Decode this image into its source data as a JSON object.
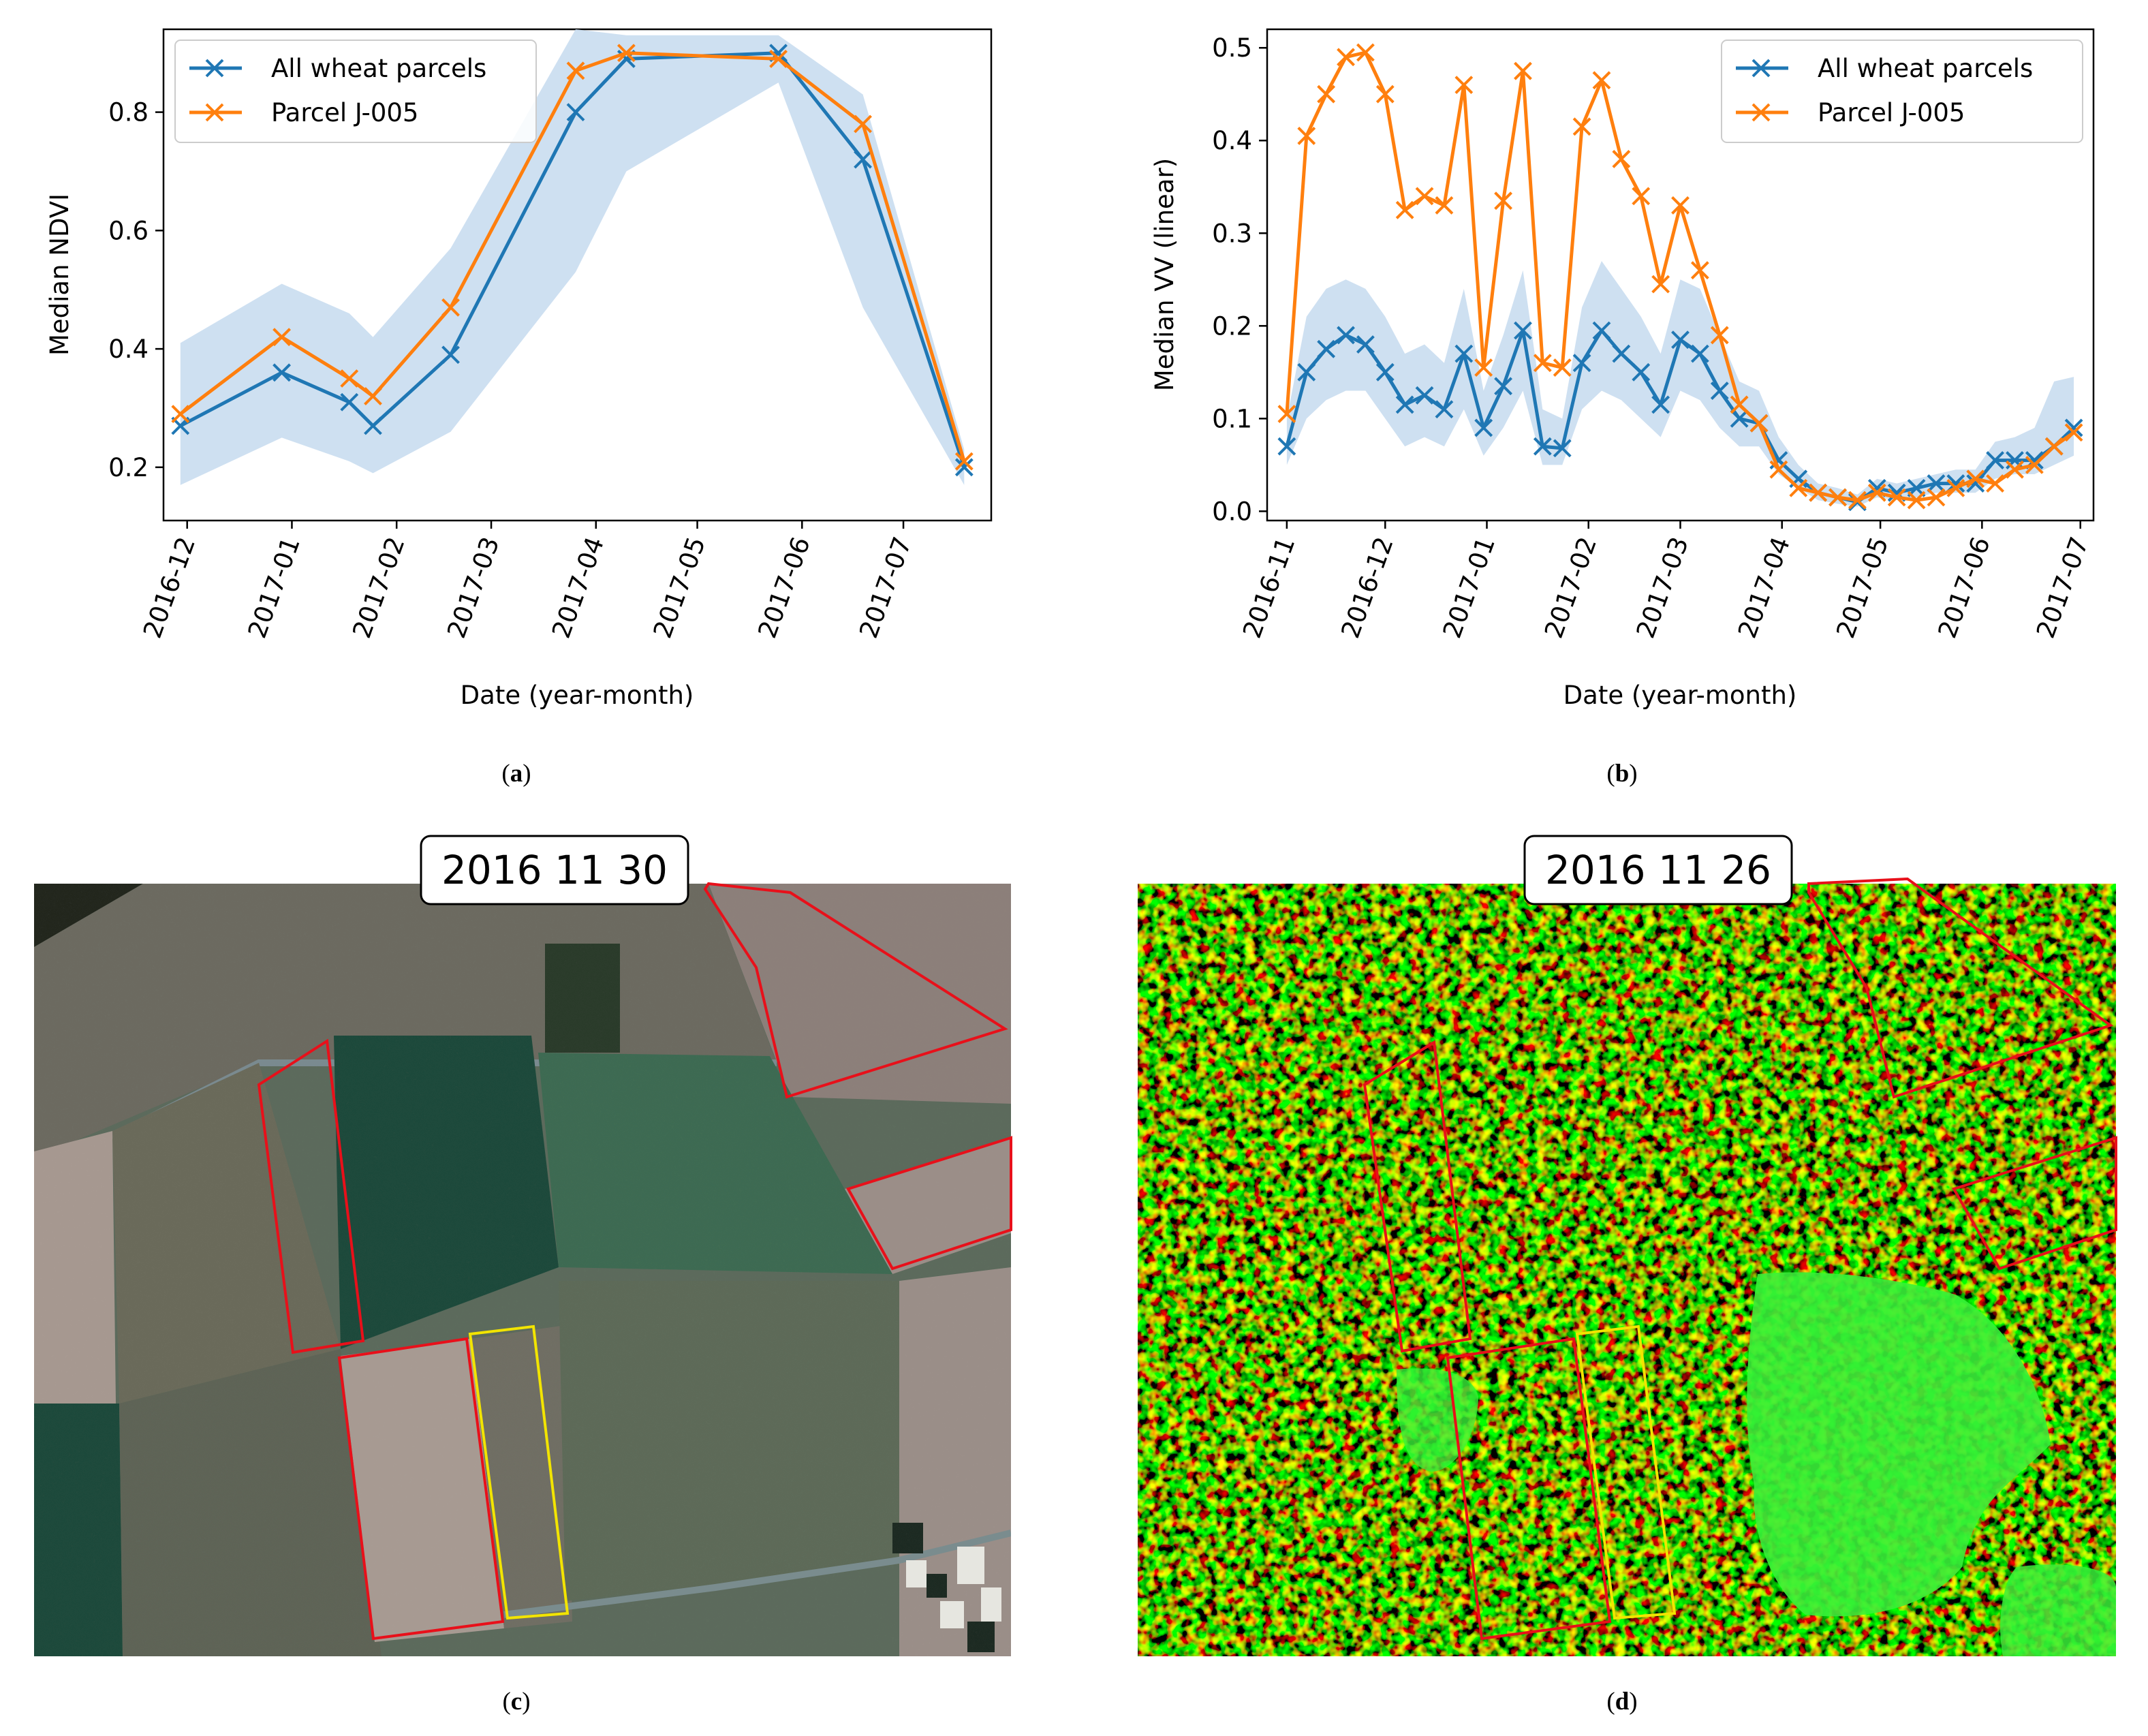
{
  "colors": {
    "all_wheat": "#1f77b4",
    "parcel": "#ff7f0e",
    "band": "#c6dbee",
    "parcel_outline_red": "#e8101a",
    "parcel_outline_yellow": "#f2e400"
  },
  "panels": {
    "a": {
      "caption_letter": "a"
    },
    "b": {
      "caption_letter": "b"
    },
    "c": {
      "caption_letter": "c",
      "date_label": "2016 11 30"
    },
    "d": {
      "caption_letter": "d",
      "date_label": "2016 11 26"
    }
  },
  "chart_data": [
    {
      "id": "a",
      "type": "line",
      "xlabel": "Date (year-month)",
      "ylabel": "Median NDVI",
      "x_ticks": [
        "2016-12",
        "2017-01",
        "2017-02",
        "2017-03",
        "2017-04",
        "2017-05",
        "2017-06",
        "2017-07"
      ],
      "x_tick_dates": [
        "2016-12-01",
        "2017-01-01",
        "2017-02-01",
        "2017-03-01",
        "2017-04-01",
        "2017-05-01",
        "2017-06-01",
        "2017-07-01"
      ],
      "xlim": [
        "2016-11-24",
        "2017-07-27"
      ],
      "ylim": [
        0.11,
        0.94
      ],
      "y_ticks": [
        0.2,
        0.4,
        0.6,
        0.8
      ],
      "grid": false,
      "legend_position": "upper-left",
      "legend": [
        "All wheat parcels",
        "Parcel J-005"
      ],
      "series": [
        {
          "name": "All wheat parcels",
          "x": [
            "2016-11-29",
            "2016-12-29",
            "2017-01-18",
            "2017-01-25",
            "2017-02-17",
            "2017-03-26",
            "2017-04-10",
            "2017-05-25",
            "2017-06-19",
            "2017-07-19"
          ],
          "y": [
            0.27,
            0.36,
            0.31,
            0.27,
            0.39,
            0.8,
            0.89,
            0.9,
            0.72,
            0.2
          ],
          "band_low": [
            0.17,
            0.25,
            0.21,
            0.19,
            0.26,
            0.53,
            0.7,
            0.85,
            0.47,
            0.17
          ],
          "band_high": [
            0.41,
            0.51,
            0.46,
            0.42,
            0.57,
            0.94,
            0.93,
            0.93,
            0.83,
            0.23
          ]
        },
        {
          "name": "Parcel J-005",
          "x": [
            "2016-11-29",
            "2016-12-29",
            "2017-01-18",
            "2017-01-25",
            "2017-02-17",
            "2017-03-26",
            "2017-04-10",
            "2017-05-25",
            "2017-06-19",
            "2017-07-19"
          ],
          "y": [
            0.29,
            0.42,
            0.35,
            0.32,
            0.47,
            0.87,
            0.9,
            0.89,
            0.78,
            0.21
          ]
        }
      ]
    },
    {
      "id": "b",
      "type": "line",
      "xlabel": "Date (year-month)",
      "ylabel": "Median VV (linear)",
      "x_ticks": [
        "2016-11",
        "2016-12",
        "2017-01",
        "2017-02",
        "2017-03",
        "2017-04",
        "2017-05",
        "2017-06",
        "2017-07"
      ],
      "x_tick_dates": [
        "2016-11-01",
        "2016-12-01",
        "2017-01-01",
        "2017-02-01",
        "2017-03-01",
        "2017-04-01",
        "2017-05-01",
        "2017-06-01",
        "2017-07-01"
      ],
      "xlim": [
        "2016-10-26",
        "2017-07-05"
      ],
      "ylim": [
        -0.01,
        0.52
      ],
      "y_ticks": [
        0.0,
        0.1,
        0.2,
        0.3,
        0.4,
        0.5
      ],
      "grid": false,
      "legend_position": "upper-right",
      "legend": [
        "All wheat parcels",
        "Parcel J-005"
      ],
      "series": [
        {
          "name": "All wheat parcels",
          "x": [
            "2016-11-01",
            "2016-11-07",
            "2016-11-13",
            "2016-11-19",
            "2016-11-25",
            "2016-12-01",
            "2016-12-07",
            "2016-12-13",
            "2016-12-19",
            "2016-12-25",
            "2016-12-31",
            "2017-01-06",
            "2017-01-12",
            "2017-01-18",
            "2017-01-24",
            "2017-01-30",
            "2017-02-05",
            "2017-02-11",
            "2017-02-17",
            "2017-02-23",
            "2017-03-01",
            "2017-03-07",
            "2017-03-13",
            "2017-03-19",
            "2017-03-25",
            "2017-03-31",
            "2017-04-06",
            "2017-04-12",
            "2017-04-18",
            "2017-04-24",
            "2017-04-30",
            "2017-05-06",
            "2017-05-12",
            "2017-05-18",
            "2017-05-24",
            "2017-05-30",
            "2017-06-05",
            "2017-06-11",
            "2017-06-17",
            "2017-06-23",
            "2017-06-29"
          ],
          "y": [
            0.07,
            0.15,
            0.175,
            0.19,
            0.18,
            0.15,
            0.115,
            0.125,
            0.11,
            0.17,
            0.09,
            0.135,
            0.195,
            0.07,
            0.068,
            0.16,
            0.195,
            0.17,
            0.15,
            0.115,
            0.185,
            0.17,
            0.13,
            0.1,
            0.095,
            0.055,
            0.035,
            0.02,
            0.015,
            0.01,
            0.025,
            0.02,
            0.025,
            0.03,
            0.03,
            0.03,
            0.055,
            0.055,
            0.055,
            0.07,
            0.09
          ],
          "band_low": [
            0.05,
            0.1,
            0.12,
            0.13,
            0.13,
            0.1,
            0.07,
            0.08,
            0.07,
            0.11,
            0.06,
            0.09,
            0.13,
            0.05,
            0.05,
            0.11,
            0.13,
            0.12,
            0.1,
            0.08,
            0.13,
            0.12,
            0.09,
            0.07,
            0.07,
            0.04,
            0.025,
            0.012,
            0.008,
            0.005,
            0.015,
            0.012,
            0.015,
            0.02,
            0.02,
            0.02,
            0.035,
            0.04,
            0.04,
            0.05,
            0.06
          ],
          "band_high": [
            0.1,
            0.21,
            0.24,
            0.25,
            0.24,
            0.21,
            0.17,
            0.18,
            0.16,
            0.24,
            0.13,
            0.19,
            0.26,
            0.11,
            0.1,
            0.22,
            0.27,
            0.24,
            0.21,
            0.17,
            0.25,
            0.24,
            0.19,
            0.14,
            0.13,
            0.08,
            0.05,
            0.03,
            0.025,
            0.018,
            0.035,
            0.03,
            0.035,
            0.04,
            0.045,
            0.045,
            0.075,
            0.08,
            0.09,
            0.14,
            0.145
          ]
        },
        {
          "name": "Parcel J-005",
          "x": [
            "2016-11-01",
            "2016-11-07",
            "2016-11-13",
            "2016-11-19",
            "2016-11-25",
            "2016-12-01",
            "2016-12-07",
            "2016-12-13",
            "2016-12-19",
            "2016-12-25",
            "2016-12-31",
            "2017-01-06",
            "2017-01-12",
            "2017-01-18",
            "2017-01-24",
            "2017-01-30",
            "2017-02-05",
            "2017-02-11",
            "2017-02-17",
            "2017-02-23",
            "2017-03-01",
            "2017-03-07",
            "2017-03-13",
            "2017-03-19",
            "2017-03-25",
            "2017-03-31",
            "2017-04-06",
            "2017-04-12",
            "2017-04-18",
            "2017-04-24",
            "2017-04-30",
            "2017-05-06",
            "2017-05-12",
            "2017-05-18",
            "2017-05-24",
            "2017-05-30",
            "2017-06-05",
            "2017-06-11",
            "2017-06-17",
            "2017-06-23",
            "2017-06-29"
          ],
          "y": [
            0.105,
            0.405,
            0.45,
            0.49,
            0.495,
            0.45,
            0.325,
            0.34,
            0.33,
            0.46,
            0.155,
            0.335,
            0.475,
            0.16,
            0.155,
            0.415,
            0.465,
            0.38,
            0.34,
            0.245,
            0.33,
            0.26,
            0.19,
            0.115,
            0.095,
            0.045,
            0.025,
            0.02,
            0.015,
            0.012,
            0.02,
            0.015,
            0.012,
            0.015,
            0.025,
            0.035,
            0.03,
            0.045,
            0.05,
            0.07,
            0.085
          ]
        }
      ]
    }
  ]
}
